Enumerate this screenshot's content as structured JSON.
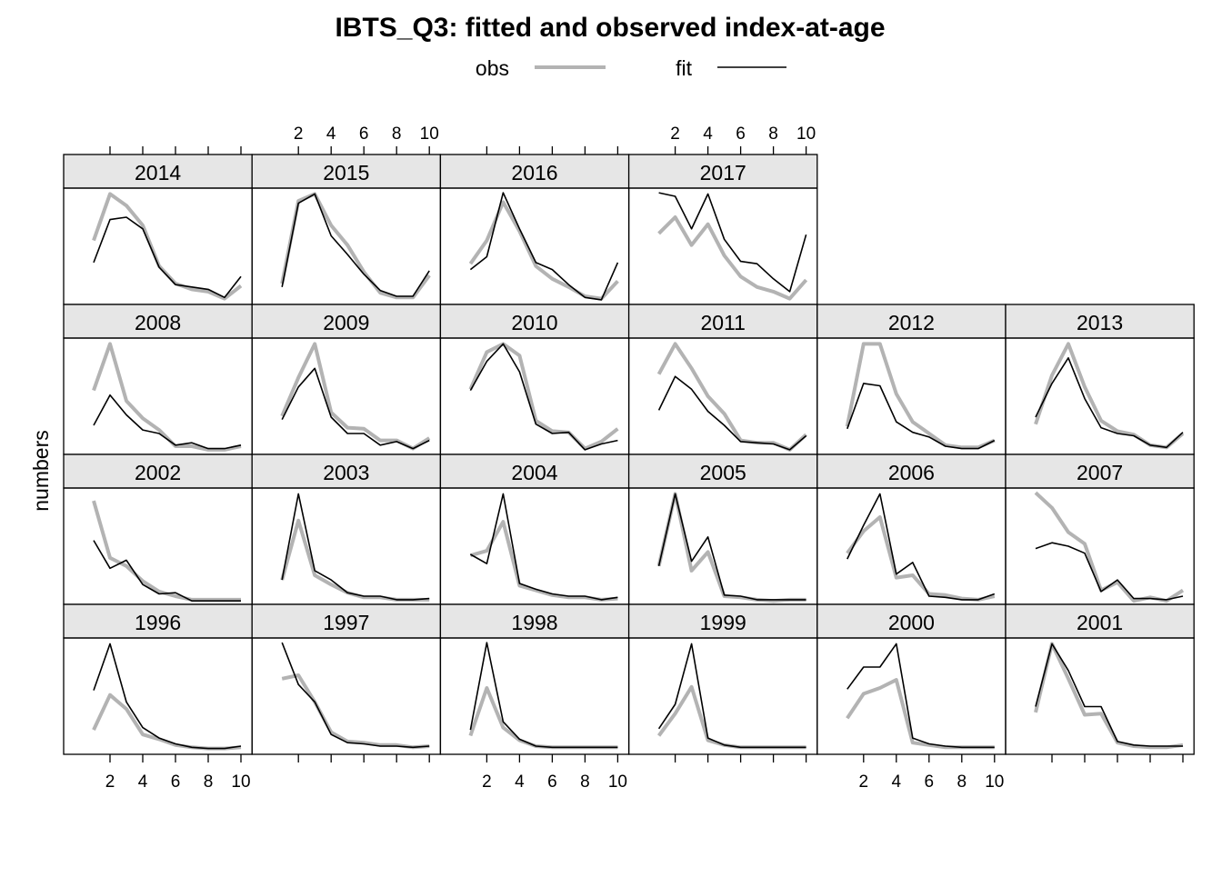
{
  "colors": {
    "obs": "#b3b3b3",
    "fit": "#000000",
    "strip": "#e6e6e6",
    "frame": "#000000"
  },
  "chart_data": {
    "type": "line",
    "title": "IBTS_Q3: fitted and observed index-at-age",
    "ylabel": "numbers",
    "xlabel": "",
    "xlim": [
      1,
      10
    ],
    "x_ticks": [
      2,
      4,
      6,
      8,
      10
    ],
    "legend": {
      "position": "top",
      "entries": [
        "obs",
        "fit"
      ]
    },
    "grid": false,
    "x": [
      1,
      2,
      3,
      4,
      5,
      6,
      7,
      8,
      9,
      10
    ],
    "y_scale": "free (no tick labels shown)",
    "panels": [
      {
        "year": "2014",
        "obs": [
          0.55,
          0.95,
          0.85,
          0.68,
          0.33,
          0.18,
          0.13,
          0.11,
          0.05,
          0.16
        ],
        "fit": [
          0.36,
          0.73,
          0.75,
          0.65,
          0.32,
          0.17,
          0.15,
          0.13,
          0.06,
          0.24
        ]
      },
      {
        "year": "2015",
        "obs": [
          0.18,
          0.89,
          0.95,
          0.68,
          0.51,
          0.28,
          0.1,
          0.06,
          0.06,
          0.25
        ],
        "fit": [
          0.15,
          0.87,
          0.95,
          0.59,
          0.43,
          0.26,
          0.12,
          0.07,
          0.07,
          0.29
        ]
      },
      {
        "year": "2016",
        "obs": [
          0.35,
          0.55,
          0.88,
          0.63,
          0.33,
          0.22,
          0.15,
          0.07,
          0.05,
          0.2
        ],
        "fit": [
          0.3,
          0.41,
          0.96,
          0.65,
          0.36,
          0.3,
          0.17,
          0.06,
          0.04,
          0.36
        ]
      },
      {
        "year": "2017",
        "obs": [
          0.61,
          0.75,
          0.51,
          0.69,
          0.42,
          0.24,
          0.15,
          0.11,
          0.05,
          0.21
        ],
        "fit": [
          0.96,
          0.93,
          0.65,
          0.95,
          0.56,
          0.37,
          0.35,
          0.22,
          0.11,
          0.6
        ]
      },
      {
        "year": "2008",
        "obs": [
          0.55,
          0.95,
          0.46,
          0.31,
          0.21,
          0.07,
          0.07,
          0.04,
          0.04,
          0.07
        ],
        "fit": [
          0.25,
          0.51,
          0.34,
          0.21,
          0.18,
          0.08,
          0.1,
          0.05,
          0.05,
          0.08
        ]
      },
      {
        "year": "2009",
        "obs": [
          0.33,
          0.66,
          0.95,
          0.36,
          0.23,
          0.22,
          0.12,
          0.12,
          0.05,
          0.14
        ],
        "fit": [
          0.3,
          0.58,
          0.74,
          0.32,
          0.18,
          0.18,
          0.08,
          0.11,
          0.05,
          0.12
        ]
      },
      {
        "year": "2010",
        "obs": [
          0.56,
          0.88,
          0.95,
          0.85,
          0.29,
          0.2,
          0.19,
          0.05,
          0.11,
          0.22
        ],
        "fit": [
          0.55,
          0.8,
          0.95,
          0.71,
          0.26,
          0.18,
          0.19,
          0.04,
          0.09,
          0.12
        ]
      },
      {
        "year": "2011",
        "obs": [
          0.69,
          0.95,
          0.74,
          0.5,
          0.35,
          0.12,
          0.1,
          0.1,
          0.04,
          0.17
        ],
        "fit": [
          0.38,
          0.67,
          0.56,
          0.37,
          0.25,
          0.11,
          0.1,
          0.09,
          0.04,
          0.16
        ]
      },
      {
        "year": "2012",
        "obs": [
          0.24,
          0.95,
          0.95,
          0.52,
          0.28,
          0.18,
          0.08,
          0.06,
          0.06,
          0.12
        ],
        "fit": [
          0.22,
          0.61,
          0.59,
          0.28,
          0.19,
          0.15,
          0.07,
          0.05,
          0.05,
          0.12
        ]
      },
      {
        "year": "2013",
        "obs": [
          0.26,
          0.68,
          0.95,
          0.58,
          0.29,
          0.2,
          0.17,
          0.08,
          0.06,
          0.18
        ],
        "fit": [
          0.32,
          0.61,
          0.83,
          0.48,
          0.23,
          0.18,
          0.16,
          0.08,
          0.06,
          0.19
        ]
      },
      {
        "year": "2002",
        "obs": [
          0.89,
          0.4,
          0.33,
          0.2,
          0.11,
          0.07,
          0.04,
          0.04,
          0.04,
          0.04
        ],
        "fit": [
          0.55,
          0.31,
          0.38,
          0.17,
          0.09,
          0.1,
          0.03,
          0.03,
          0.03,
          0.03
        ]
      },
      {
        "year": "2003",
        "obs": [
          0.21,
          0.72,
          0.25,
          0.17,
          0.1,
          0.06,
          0.06,
          0.04,
          0.04,
          0.04
        ],
        "fit": [
          0.21,
          0.95,
          0.29,
          0.21,
          0.1,
          0.07,
          0.07,
          0.04,
          0.04,
          0.05
        ]
      },
      {
        "year": "2004",
        "obs": [
          0.42,
          0.46,
          0.71,
          0.16,
          0.12,
          0.08,
          0.06,
          0.06,
          0.04,
          0.05
        ],
        "fit": [
          0.43,
          0.35,
          0.95,
          0.18,
          0.13,
          0.09,
          0.07,
          0.07,
          0.04,
          0.06
        ]
      },
      {
        "year": "2005",
        "obs": [
          0.33,
          0.95,
          0.29,
          0.45,
          0.07,
          0.06,
          0.04,
          0.03,
          0.04,
          0.04
        ],
        "fit": [
          0.33,
          0.95,
          0.37,
          0.58,
          0.08,
          0.07,
          0.04,
          0.04,
          0.04,
          0.04
        ]
      },
      {
        "year": "2006",
        "obs": [
          0.44,
          0.63,
          0.75,
          0.23,
          0.25,
          0.09,
          0.08,
          0.05,
          0.04,
          0.07
        ],
        "fit": [
          0.39,
          0.68,
          0.95,
          0.26,
          0.36,
          0.07,
          0.06,
          0.04,
          0.04,
          0.09
        ]
      },
      {
        "year": "2007",
        "obs": [
          0.96,
          0.83,
          0.62,
          0.52,
          0.12,
          0.19,
          0.03,
          0.06,
          0.03,
          0.12
        ],
        "fit": [
          0.48,
          0.53,
          0.5,
          0.44,
          0.11,
          0.21,
          0.05,
          0.05,
          0.04,
          0.07
        ]
      },
      {
        "year": "1996",
        "obs": [
          0.21,
          0.51,
          0.39,
          0.17,
          0.13,
          0.08,
          0.06,
          0.05,
          0.05,
          0.06
        ],
        "fit": [
          0.55,
          0.95,
          0.45,
          0.23,
          0.14,
          0.09,
          0.06,
          0.05,
          0.05,
          0.07
        ]
      },
      {
        "year": "1997",
        "obs": [
          0.65,
          0.68,
          0.45,
          0.19,
          0.11,
          0.1,
          0.08,
          0.08,
          0.06,
          0.07
        ],
        "fit": [
          0.96,
          0.6,
          0.45,
          0.17,
          0.1,
          0.09,
          0.07,
          0.07,
          0.06,
          0.07
        ]
      },
      {
        "year": "1998",
        "obs": [
          0.16,
          0.57,
          0.23,
          0.12,
          0.07,
          0.06,
          0.06,
          0.06,
          0.06,
          0.06
        ],
        "fit": [
          0.21,
          0.96,
          0.28,
          0.13,
          0.07,
          0.06,
          0.06,
          0.06,
          0.06,
          0.06
        ]
      },
      {
        "year": "1999",
        "obs": [
          0.16,
          0.35,
          0.58,
          0.12,
          0.08,
          0.06,
          0.06,
          0.06,
          0.06,
          0.06
        ],
        "fit": [
          0.22,
          0.43,
          0.95,
          0.14,
          0.08,
          0.06,
          0.06,
          0.06,
          0.06,
          0.06
        ]
      },
      {
        "year": "2000",
        "obs": [
          0.31,
          0.52,
          0.57,
          0.64,
          0.1,
          0.08,
          0.06,
          0.06,
          0.06,
          0.06
        ],
        "fit": [
          0.56,
          0.75,
          0.75,
          0.95,
          0.14,
          0.09,
          0.07,
          0.06,
          0.06,
          0.06
        ]
      },
      {
        "year": "2001",
        "obs": [
          0.36,
          0.95,
          0.65,
          0.34,
          0.35,
          0.1,
          0.07,
          0.06,
          0.06,
          0.08
        ],
        "fit": [
          0.41,
          0.95,
          0.72,
          0.41,
          0.41,
          0.11,
          0.08,
          0.07,
          0.07,
          0.07
        ]
      }
    ]
  }
}
